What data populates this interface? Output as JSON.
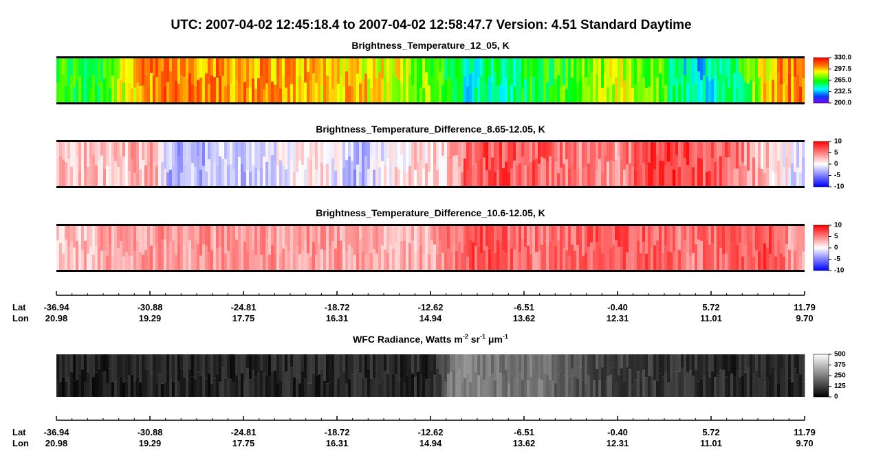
{
  "header": {
    "title": "UTC:  2007-04-02   12:45:18.4  to  2007-04-02   12:58:47.7    Version: 4.51  Standard Daytime"
  },
  "panels": [
    {
      "title": "Brightness_Temperature_12_05, K",
      "colorbar": [
        "330.0",
        "297.5",
        "265.0",
        "232.5",
        "200.0"
      ]
    },
    {
      "title": "Brightness_Temperature_Difference_8.65-12.05, K",
      "colorbar": [
        "10",
        "5",
        "0",
        "-5",
        "-10"
      ]
    },
    {
      "title": "Brightness_Temperature_Difference_10.6-12.05, K",
      "colorbar": [
        "10",
        "5",
        "0",
        "-5",
        "-10"
      ]
    },
    {
      "title": [
        "WFC Radiance, Watts m",
        "-2",
        " sr",
        "-1",
        " μm",
        "-1"
      ],
      "colorbar": [
        "500",
        "375",
        "250",
        "125",
        "0"
      ]
    }
  ],
  "axis": {
    "lat_label": "Lat",
    "lon_label": "Lon",
    "lat": [
      "-36.94",
      "-30.88",
      "-24.81",
      "-18.72",
      "-12.62",
      "-6.51",
      "-0.40",
      "5.72",
      "11.79"
    ],
    "lon": [
      "20.98",
      "19.29",
      "17.75",
      "16.31",
      "14.94",
      "13.62",
      "12.31",
      "11.01",
      "9.70"
    ]
  }
}
